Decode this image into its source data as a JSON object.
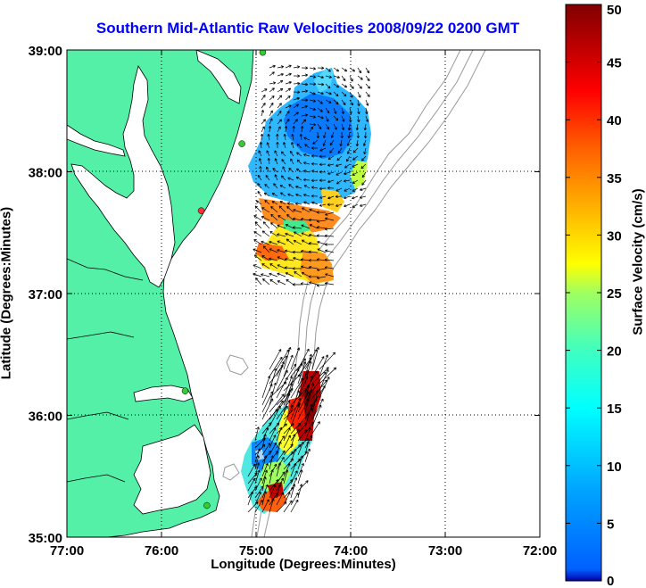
{
  "title": "Southern Mid-Atlantic Raw Velocities 2008/09/22 0200 GMT",
  "map": {
    "xlabel": "Longitude (Degrees:Minutes)",
    "ylabel": "Latitude (Degrees:Minutes)",
    "lon_range": [
      -77,
      -72
    ],
    "lat_range": [
      35,
      39
    ],
    "x_ticks": [
      {
        "value": -77,
        "label": "77:00"
      },
      {
        "value": -76,
        "label": "76:00"
      },
      {
        "value": -75,
        "label": "75:00"
      },
      {
        "value": -74,
        "label": "74:00"
      },
      {
        "value": -73,
        "label": "73:00"
      },
      {
        "value": -72,
        "label": "72:00"
      }
    ],
    "y_ticks": [
      {
        "value": 39,
        "label": "39:00"
      },
      {
        "value": 38,
        "label": "38:00"
      },
      {
        "value": 37,
        "label": "37:00"
      },
      {
        "value": 36,
        "label": "36:00"
      },
      {
        "value": 35,
        "label": "35:00"
      }
    ],
    "grid": "dotted",
    "colors": {
      "land": "#55f0a8",
      "water": "#ffffff",
      "bathymetry": "#999999",
      "station": "#33cc33",
      "station_alt": "#ff3333"
    }
  },
  "stations": [
    {
      "lon": -74.93,
      "lat": 38.98,
      "color": "station"
    },
    {
      "lon": -75.15,
      "lat": 38.23,
      "color": "station"
    },
    {
      "lon": -75.58,
      "lat": 37.68,
      "color": "station_alt"
    },
    {
      "lon": -75.75,
      "lat": 36.2,
      "color": "station"
    },
    {
      "lon": -75.52,
      "lat": 35.26,
      "color": "station"
    }
  ],
  "colorbar": {
    "label": "Surface Velocity (cm/s)",
    "range": [
      0,
      50
    ],
    "ticks": [
      "0",
      "5",
      "10",
      "15",
      "20",
      "25",
      "30",
      "35",
      "40",
      "45",
      "50"
    ]
  }
}
